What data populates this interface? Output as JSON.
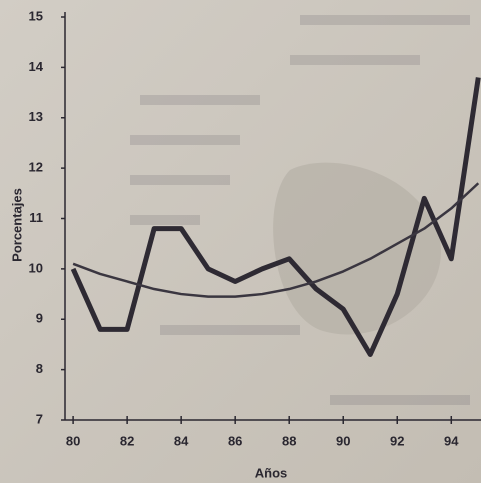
{
  "chart_data": {
    "type": "line",
    "x": [
      80,
      81,
      82,
      83,
      84,
      85,
      86,
      87,
      88,
      89,
      90,
      91,
      92,
      93,
      94,
      95
    ],
    "series": [
      {
        "color": "#2e2a33",
        "values": [
          10.0,
          8.8,
          8.8,
          10.8,
          10.8,
          10.0,
          9.75,
          10.0,
          10.2,
          9.6,
          9.2,
          8.3,
          9.5,
          11.4,
          10.2,
          13.8
        ]
      },
      {
        "color": "#3a3640",
        "values": [
          10.1,
          9.9,
          9.75,
          9.6,
          9.5,
          9.45,
          9.45,
          9.5,
          9.6,
          9.75,
          9.95,
          10.2,
          10.5,
          10.8,
          11.2,
          11.7
        ]
      }
    ],
    "xlim": [
      79.7,
      95.1
    ],
    "xticks": [
      80,
      82,
      84,
      86,
      88,
      90,
      92,
      94
    ],
    "ylim": [
      7,
      15
    ],
    "yticks": [
      7,
      8,
      9,
      10,
      11,
      12,
      13,
      14,
      15
    ],
    "xlabel": "Años",
    "ylabel": "Porcentajes"
  }
}
